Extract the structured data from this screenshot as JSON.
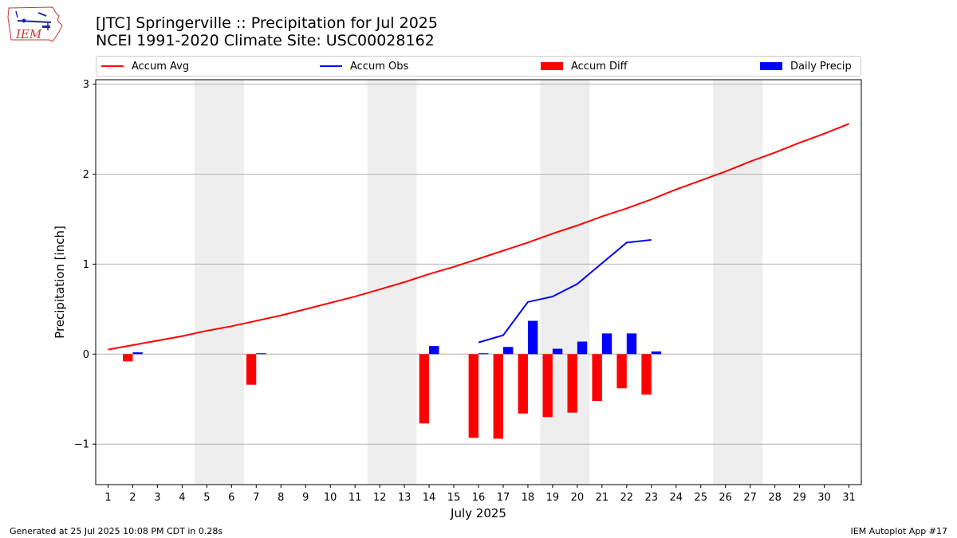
{
  "logo": {
    "text": "IEM"
  },
  "title": "[JTC] Springerville :: Precipitation for Jul 2025",
  "subtitle": "NCEI 1991-2020 Climate Site: USC00028162",
  "legend": [
    {
      "label": "Accum Avg",
      "kind": "line",
      "color": "#ff0000"
    },
    {
      "label": "Accum Obs",
      "kind": "line",
      "color": "#0000ff"
    },
    {
      "label": "Accum Diff",
      "kind": "bar",
      "color": "#ff0000"
    },
    {
      "label": "Daily Precip",
      "kind": "bar",
      "color": "#0000ff"
    }
  ],
  "footer": {
    "left": "Generated at 25 Jul 2025 10:08 PM CDT in 0.28s",
    "right": "IEM Autoplot App #17"
  },
  "chart_data": {
    "type": "bar",
    "xlabel": "July 2025",
    "ylabel": "Precipitation [inch]",
    "xlim": [
      0.5,
      31.5
    ],
    "ylim": [
      -1.45,
      3.05
    ],
    "yticks": [
      -1,
      0,
      1,
      2,
      3
    ],
    "ytick_labels": [
      "−1",
      "0",
      "1",
      "2",
      "3"
    ],
    "xticks": [
      1,
      2,
      3,
      4,
      5,
      6,
      7,
      8,
      9,
      10,
      11,
      12,
      13,
      14,
      15,
      16,
      17,
      18,
      19,
      20,
      21,
      22,
      23,
      24,
      25,
      26,
      27,
      28,
      29,
      30,
      31
    ],
    "grid": "horizontal",
    "weekend_shading": [
      [
        4.5,
        6.5
      ],
      [
        11.5,
        13.5
      ],
      [
        18.5,
        20.5
      ],
      [
        25.5,
        27.5
      ]
    ],
    "series": [
      {
        "name": "Accum Avg",
        "type": "line",
        "color": "#ff0000",
        "x": [
          1,
          2,
          3,
          4,
          5,
          6,
          7,
          8,
          9,
          10,
          11,
          12,
          13,
          14,
          15,
          16,
          17,
          18,
          19,
          20,
          21,
          22,
          23,
          24,
          25,
          26,
          27,
          28,
          29,
          30,
          31
        ],
        "values": [
          0.05,
          0.1,
          0.15,
          0.2,
          0.26,
          0.31,
          0.37,
          0.43,
          0.5,
          0.57,
          0.64,
          0.72,
          0.8,
          0.89,
          0.97,
          1.06,
          1.15,
          1.24,
          1.34,
          1.43,
          1.53,
          1.62,
          1.72,
          1.83,
          1.93,
          2.03,
          2.14,
          2.24,
          2.35,
          2.45,
          2.56
        ]
      },
      {
        "name": "Accum Obs",
        "type": "line",
        "color": "#0000ff",
        "x": [
          16,
          17,
          18,
          19,
          20,
          21,
          22,
          23
        ],
        "values": [
          0.13,
          0.21,
          0.58,
          0.64,
          0.78,
          1.01,
          1.24,
          1.27
        ]
      },
      {
        "name": "Accum Diff",
        "type": "bar",
        "color": "#ff0000",
        "x": [
          2,
          7,
          14,
          16,
          17,
          18,
          19,
          20,
          21,
          22,
          23
        ],
        "values": [
          -0.08,
          -0.34,
          -0.77,
          -0.93,
          -0.94,
          -0.66,
          -0.7,
          -0.65,
          -0.52,
          -0.38,
          -0.45
        ]
      },
      {
        "name": "Daily Precip",
        "type": "bar",
        "color": "#0000ff",
        "x": [
          2,
          7,
          14,
          16,
          17,
          18,
          19,
          20,
          21,
          22,
          23
        ],
        "values": [
          0.02,
          0.01,
          0.09,
          0.01,
          0.08,
          0.37,
          0.06,
          0.14,
          0.23,
          0.23,
          0.03
        ]
      }
    ]
  }
}
